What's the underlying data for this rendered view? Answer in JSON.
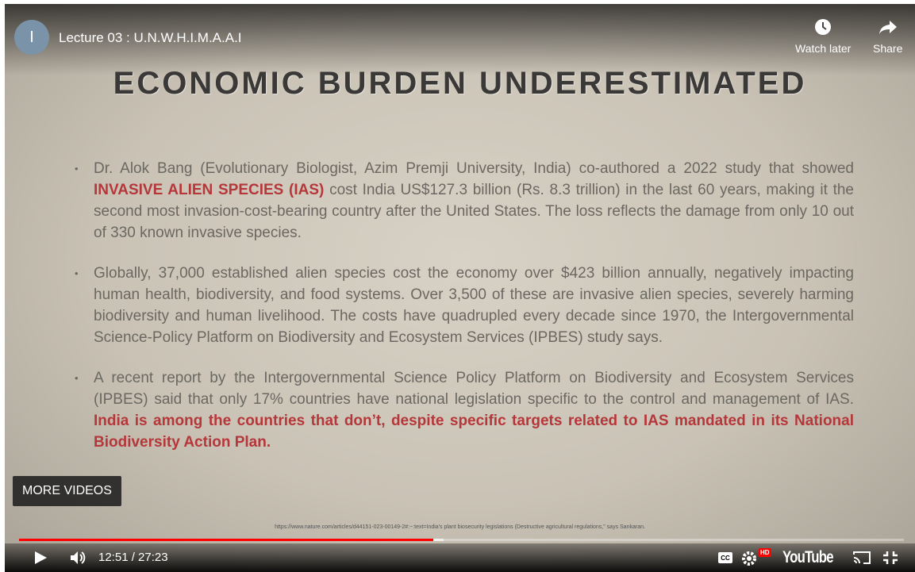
{
  "player": {
    "channel_initial": "I",
    "video_title": "Lecture 03 : U.N.W.H.I.M.A.A.I",
    "watch_later": "Watch later",
    "share": "Share",
    "more_videos": "MORE VIDEOS",
    "time": "12:51 / 27:23",
    "hd_badge": "HD",
    "logo": "YouTube"
  },
  "slide": {
    "title": "ECONOMIC BURDEN UNDERESTIMATED",
    "bullets": [
      {
        "runs": [
          {
            "text": "Dr. Alok Bang (Evolutionary Biologist, Azim Premji University, India) co-authored a 2022 study that showed ",
            "highlight": false
          },
          {
            "text": "INVASIVE ALIEN SPECIES (IAS)",
            "highlight": true
          },
          {
            "text": " cost India US$127.3 billion (Rs. 8.3 trillion) in the last 60 years, making it the second most invasion-cost-bearing country after the United States. The loss reflects the damage from only 10 out of 330 known invasive species.",
            "highlight": false
          }
        ]
      },
      {
        "runs": [
          {
            "text": "Globally, 37,000 established alien species cost the economy over $423 billion annually, negatively impacting human health, biodiversity, and food systems. Over 3,500 of these are invasive alien species, severely harming biodiversity and human livelihood. The costs have quadrupled every decade since 1970, the Intergovernmental Science-Policy Platform on Biodiversity and Ecosystem Services (IPBES) study says.",
            "highlight": false
          }
        ]
      },
      {
        "runs": [
          {
            "text": "A recent report by the Intergovernmental Science Policy Platform on Biodiversity and Ecosystem Services (IPBES) said that only 17% countries have national legislation specific to the control and management of IAS. ",
            "highlight": false
          },
          {
            "text": "India is among the countries that don’t, despite specific targets related to IAS mandated in its National Biodiversity Action Plan.",
            "highlight": true
          }
        ]
      }
    ],
    "footnote": "https://www.nature.com/articles/d44151-023-00149-2#:~:text=India's plant biosecurity legislations (Destructive agricultural regulations,\" says Sankaran."
  }
}
